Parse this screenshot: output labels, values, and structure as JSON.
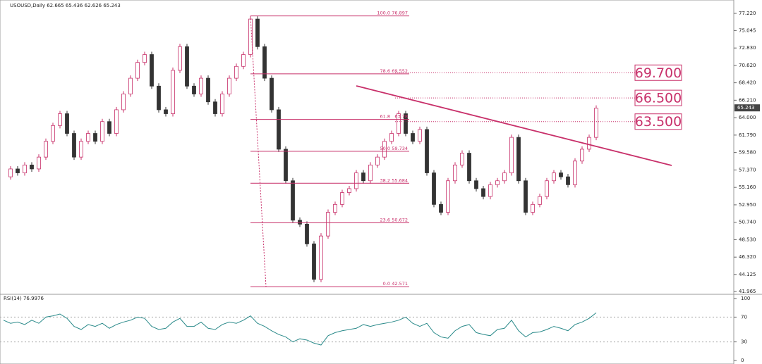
{
  "chart_data": [
    {
      "type": "candlestick",
      "title": "USOUSD,Daily 62.665 65.436 62.626 65.243",
      "last_price": {
        "value": 65.243,
        "label": "65.243"
      },
      "closes": [
        56.5,
        57.5,
        57,
        58,
        57.5,
        59,
        61,
        63,
        64.5,
        62,
        59,
        61,
        62,
        61,
        63.5,
        62,
        65,
        67,
        69,
        71,
        72,
        68,
        65,
        64.5,
        70,
        73,
        68,
        67,
        69,
        66,
        64.5,
        67,
        69,
        70.5,
        72,
        76.5,
        73,
        69,
        65,
        60,
        56,
        51,
        50.5,
        48,
        43.5,
        49,
        52,
        53,
        54.5,
        55,
        57,
        56,
        58,
        59,
        61,
        62,
        64.5,
        62,
        61,
        62.5,
        57,
        53,
        52,
        56,
        58,
        59.5,
        56,
        55,
        54,
        55.5,
        56,
        57,
        61.5,
        56,
        52,
        53,
        54,
        56,
        57,
        56.5,
        55.5,
        58.5,
        60,
        61.5,
        65.2
      ],
      "xlim": [
        -0.5,
        103.5
      ],
      "ylim": [
        41.607,
        78.916
      ],
      "yticks": [
        {
          "value": 77.22,
          "label": "77.220"
        },
        {
          "value": 75.045,
          "label": "75.045"
        },
        {
          "value": 72.83,
          "label": "72.830"
        },
        {
          "value": 70.62,
          "label": "70.620"
        },
        {
          "value": 68.42,
          "label": "68.420"
        },
        {
          "value": 66.21,
          "label": "66.210"
        },
        {
          "value": 64,
          "label": "64.000"
        },
        {
          "value": 61.79,
          "label": "61.790"
        },
        {
          "value": 59.58,
          "label": "59.580"
        },
        {
          "value": 57.37,
          "label": "57.370"
        },
        {
          "value": 55.16,
          "label": "55.160"
        },
        {
          "value": 52.95,
          "label": "52.950"
        },
        {
          "value": 50.74,
          "label": "50.740"
        },
        {
          "value": 48.53,
          "label": "48.530"
        },
        {
          "value": 46.32,
          "label": "46.320"
        },
        {
          "value": 44.125,
          "label": "44.125"
        },
        {
          "value": 41.965,
          "label": "41.965"
        }
      ],
      "fib_levels": [
        {
          "label": "100.0",
          "value": 76.897
        },
        {
          "label": "78.6",
          "value": 69.552
        },
        {
          "label": "61.8",
          "value": 63.78
        },
        {
          "label": "50.0",
          "value": 59.734
        },
        {
          "label": "38.2",
          "value": 55.684
        },
        {
          "label": "23.6",
          "value": 50.672
        },
        {
          "label": "0.0",
          "value": 42.571
        }
      ],
      "levels": [
        {
          "value": 69.7,
          "label": "69.700"
        },
        {
          "value": 66.5,
          "label": "66.500"
        },
        {
          "value": 63.5,
          "label": "63.500"
        }
      ],
      "trendline": {
        "x": [
          50,
          94.7
        ],
        "y": [
          68.03,
          57.94
        ]
      },
      "up_color": "#c8306a",
      "down_color": "#333333"
    },
    {
      "type": "line",
      "title": "RSI(14) 76.9976",
      "color": "#2a8a8a",
      "values": [
        65,
        60,
        62,
        58,
        65,
        60,
        70,
        72,
        75,
        68,
        55,
        50,
        58,
        55,
        60,
        52,
        58,
        62,
        65,
        70,
        68,
        55,
        50,
        52,
        62,
        68,
        55,
        55,
        62,
        52,
        50,
        58,
        62,
        60,
        65,
        72,
        60,
        55,
        48,
        42,
        38,
        30,
        35,
        33,
        28,
        25,
        40,
        45,
        48,
        50,
        52,
        58,
        55,
        58,
        60,
        62,
        65,
        70,
        60,
        55,
        60,
        45,
        38,
        36,
        48,
        55,
        58,
        45,
        42,
        40,
        50,
        52,
        65,
        48,
        38,
        45,
        46,
        50,
        55,
        52,
        48,
        58,
        62,
        68,
        77
      ],
      "ylim": [
        0,
        100
      ],
      "yticks": [
        100,
        70,
        30,
        0
      ],
      "levels": [
        70,
        30
      ]
    }
  ]
}
